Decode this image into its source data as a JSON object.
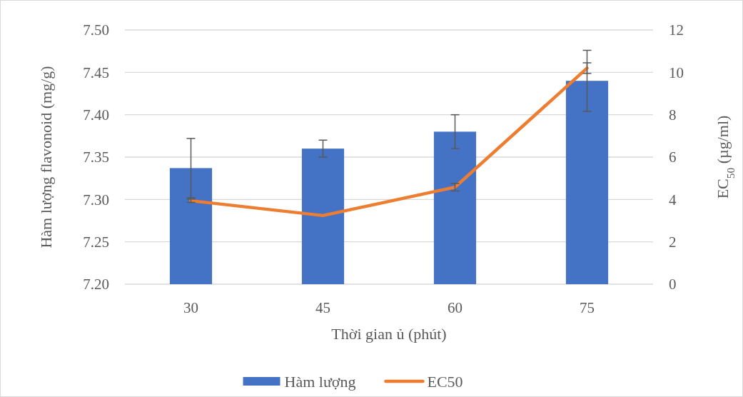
{
  "chart_data": {
    "type": "bar",
    "xlabel": "Thời gian ủ (phút)",
    "ylabel": "Hàm lượng flavonoid (mg/g)",
    "y2label": "EC$_{50}$ (µg/ml)",
    "categories": [
      "30",
      "45",
      "60",
      "75"
    ],
    "series": [
      {
        "name": "Hàm lượng",
        "color": "#4472c4",
        "values": [
          7.337,
          7.36,
          7.38,
          7.44
        ],
        "errors": [
          0.035,
          0.01,
          0.02,
          0.036
        ]
      },
      {
        "name": "EC50",
        "type": "line",
        "axis": "y2",
        "color": "#ed7d31",
        "values": [
          3.94,
          3.24,
          4.58,
          10.2
        ],
        "errors": [
          0.08,
          null,
          0.18,
          0.25
        ]
      }
    ],
    "ylim": [
      7.2,
      7.5
    ],
    "yticks": [
      {
        "value": 7.2,
        "label": "7.20"
      },
      {
        "value": 7.25,
        "label": "7.25"
      },
      {
        "value": 7.3,
        "label": "7.30"
      },
      {
        "value": 7.35,
        "label": "7.35"
      },
      {
        "value": 7.4,
        "label": "7.40"
      },
      {
        "value": 7.45,
        "label": "7.45"
      },
      {
        "value": 7.5,
        "label": "7.50"
      }
    ],
    "y2lim": [
      0,
      12
    ],
    "y2ticks": [
      0,
      2,
      4,
      6,
      8,
      10,
      12
    ],
    "grid": "y",
    "legend": "bottom",
    "marker": "none",
    "line_style": "solid"
  }
}
